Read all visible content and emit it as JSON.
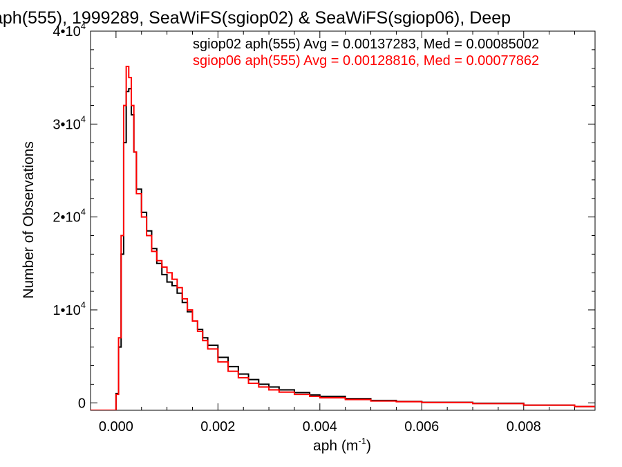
{
  "chart_data": {
    "type": "line",
    "title": "aph(555), 1999289, SeaWiFS(sgiop02) & SeaWiFS(sgiop06), Deep",
    "xlabel": "aph (m",
    "xlabel_sup": "-1",
    "xlabel_close": ")",
    "ylabel": "Number of Observations",
    "xlim": [
      -0.0005,
      0.0094
    ],
    "ylim": [
      -800,
      40000
    ],
    "x_ticks": [
      {
        "value": 0.0,
        "label": "0.000"
      },
      {
        "value": 0.002,
        "label": "0.002"
      },
      {
        "value": 0.004,
        "label": "0.004"
      },
      {
        "value": 0.006,
        "label": "0.006"
      },
      {
        "value": 0.008,
        "label": "0.008"
      }
    ],
    "y_ticks": [
      {
        "value": 0,
        "label": "0",
        "sup": ""
      },
      {
        "value": 10000,
        "label": "1•10",
        "sup": "4"
      },
      {
        "value": 20000,
        "label": "2•10",
        "sup": "4"
      },
      {
        "value": 30000,
        "label": "3•10",
        "sup": "4"
      },
      {
        "value": 40000,
        "label": "4•10",
        "sup": "4"
      }
    ],
    "legend_position": "top-right",
    "series": [
      {
        "name": "sgiop02 aph(555) Avg = 0.00137283, Med = 0.00085002",
        "color": "#000000",
        "points": [
          [
            -0.0005,
            -800
          ],
          [
            -5e-05,
            -800
          ],
          [
            0.0,
            1000
          ],
          [
            5e-05,
            6000
          ],
          [
            0.0001,
            16000
          ],
          [
            0.00015,
            28000
          ],
          [
            0.0002,
            33500
          ],
          [
            0.00025,
            33800
          ],
          [
            0.0003,
            31000
          ],
          [
            0.00035,
            27000
          ],
          [
            0.0004,
            23000
          ],
          [
            0.0005,
            20500
          ],
          [
            0.0006,
            18500
          ],
          [
            0.0007,
            16600
          ],
          [
            0.0008,
            15000
          ],
          [
            0.0009,
            13800
          ],
          [
            0.001,
            13000
          ],
          [
            0.0011,
            12600
          ],
          [
            0.0012,
            11800
          ],
          [
            0.0013,
            10800
          ],
          [
            0.0014,
            9800
          ],
          [
            0.0015,
            8800
          ],
          [
            0.0016,
            7900
          ],
          [
            0.0017,
            7000
          ],
          [
            0.0018,
            6200
          ],
          [
            0.002,
            4900
          ],
          [
            0.0022,
            3900
          ],
          [
            0.0024,
            3100
          ],
          [
            0.0026,
            2500
          ],
          [
            0.0028,
            2000
          ],
          [
            0.003,
            1700
          ],
          [
            0.0032,
            1400
          ],
          [
            0.0035,
            1100
          ],
          [
            0.0038,
            850
          ],
          [
            0.004,
            700
          ],
          [
            0.0045,
            450
          ],
          [
            0.005,
            250
          ],
          [
            0.0055,
            150
          ],
          [
            0.006,
            60
          ],
          [
            0.007,
            -50
          ],
          [
            0.008,
            -250
          ],
          [
            0.009,
            -400
          ],
          [
            0.0094,
            -450
          ]
        ]
      },
      {
        "name": "sgiop06 aph(555) Avg = 0.00128816, Med = 0.00077862",
        "color": "#ff0000",
        "points": [
          [
            -0.0005,
            -800
          ],
          [
            -5e-05,
            -800
          ],
          [
            0.0,
            900
          ],
          [
            5e-05,
            7000
          ],
          [
            0.0001,
            18000
          ],
          [
            0.00015,
            32000
          ],
          [
            0.0002,
            36200
          ],
          [
            0.00025,
            35000
          ],
          [
            0.0003,
            32000
          ],
          [
            0.00035,
            27000
          ],
          [
            0.0004,
            22500
          ],
          [
            0.0005,
            20000
          ],
          [
            0.0006,
            18000
          ],
          [
            0.0007,
            16300
          ],
          [
            0.0008,
            15300
          ],
          [
            0.0009,
            14600
          ],
          [
            0.001,
            14000
          ],
          [
            0.0011,
            13300
          ],
          [
            0.0012,
            12400
          ],
          [
            0.0013,
            11200
          ],
          [
            0.0014,
            10000
          ],
          [
            0.0015,
            8800
          ],
          [
            0.0016,
            7700
          ],
          [
            0.0017,
            6700
          ],
          [
            0.0018,
            5800
          ],
          [
            0.002,
            4400
          ],
          [
            0.0022,
            3400
          ],
          [
            0.0024,
            2700
          ],
          [
            0.0026,
            2100
          ],
          [
            0.0028,
            1700
          ],
          [
            0.003,
            1400
          ],
          [
            0.0032,
            1150
          ],
          [
            0.0035,
            900
          ],
          [
            0.0038,
            700
          ],
          [
            0.004,
            550
          ],
          [
            0.0045,
            350
          ],
          [
            0.005,
            200
          ],
          [
            0.0055,
            120
          ],
          [
            0.006,
            40
          ],
          [
            0.007,
            -80
          ],
          [
            0.008,
            -250
          ],
          [
            0.009,
            -400
          ],
          [
            0.0094,
            -450
          ]
        ]
      }
    ]
  }
}
